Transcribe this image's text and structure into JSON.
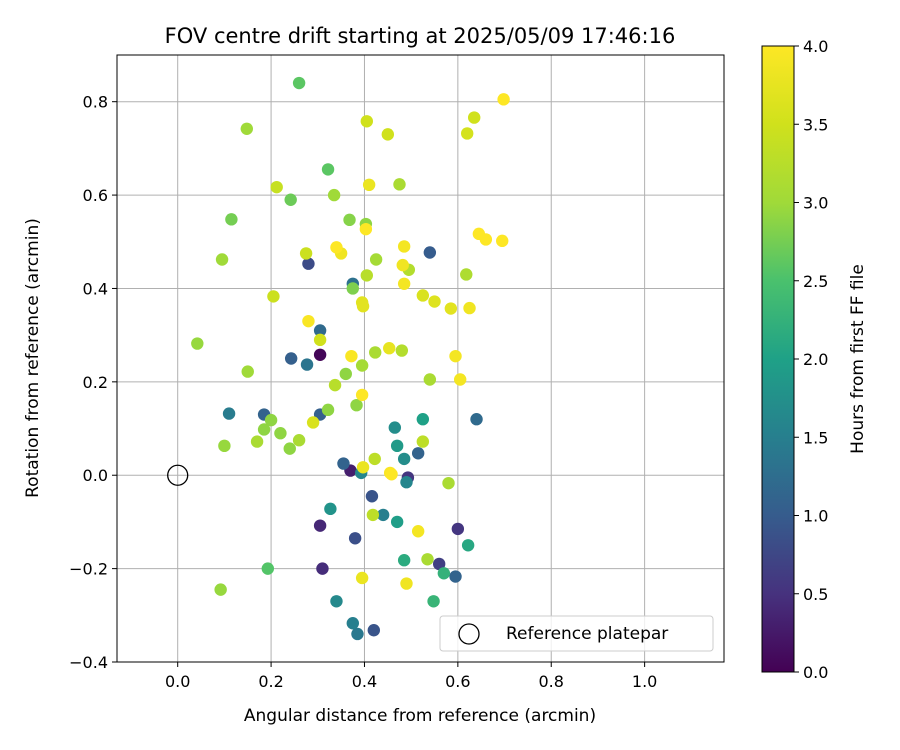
{
  "chart_data": {
    "type": "scatter",
    "title": "FOV centre drift starting at 2025/05/09 17:46:16",
    "xlabel": "Angular distance from reference (arcmin)",
    "ylabel": "Rotation from reference (arcmin)",
    "xlim": [
      -0.13,
      1.17
    ],
    "ylim": [
      -0.4,
      0.9
    ],
    "xticks": [
      0.0,
      0.2,
      0.4,
      0.6,
      0.8,
      1.0
    ],
    "xtick_labels": [
      "0.0",
      "0.2",
      "0.4",
      "0.6",
      "0.8",
      "1.0"
    ],
    "yticks": [
      -0.4,
      -0.2,
      0.0,
      0.2,
      0.4,
      0.6,
      0.8
    ],
    "ytick_labels": [
      "−0.4",
      "−0.2",
      "0.0",
      "0.2",
      "0.4",
      "0.6",
      "0.8"
    ],
    "grid": true,
    "colormap": "viridis",
    "colorbar": {
      "label": "Hours from first FF file",
      "range": [
        0.0,
        4.0
      ],
      "ticks": [
        0.0,
        0.5,
        1.0,
        1.5,
        2.0,
        2.5,
        3.0,
        3.5,
        4.0
      ],
      "tick_labels": [
        "0.0",
        "0.5",
        "1.0",
        "1.5",
        "2.0",
        "2.5",
        "3.0",
        "3.5",
        "4.0"
      ]
    },
    "reference": {
      "x": 0.0,
      "y": 0.0,
      "label": "Reference platepar"
    },
    "legend_position": "lower-right",
    "points": [
      {
        "x": 0.305,
        "y": 0.258,
        "t": 0.05
      },
      {
        "x": 0.37,
        "y": 0.01,
        "t": 0.3
      },
      {
        "x": 0.305,
        "y": -0.108,
        "t": 0.4
      },
      {
        "x": 0.31,
        "y": -0.2,
        "t": 0.45
      },
      {
        "x": 0.493,
        "y": -0.005,
        "t": 0.55
      },
      {
        "x": 0.6,
        "y": -0.115,
        "t": 0.55
      },
      {
        "x": 0.56,
        "y": -0.19,
        "t": 0.65
      },
      {
        "x": 0.28,
        "y": 0.453,
        "t": 0.8
      },
      {
        "x": 0.38,
        "y": -0.135,
        "t": 0.85
      },
      {
        "x": 0.416,
        "y": -0.045,
        "t": 0.9
      },
      {
        "x": 0.42,
        "y": -0.332,
        "t": 0.9
      },
      {
        "x": 0.54,
        "y": 0.477,
        "t": 1.0
      },
      {
        "x": 0.243,
        "y": 0.25,
        "t": 1.05
      },
      {
        "x": 0.305,
        "y": 0.13,
        "t": 1.05
      },
      {
        "x": 0.185,
        "y": 0.13,
        "t": 1.1
      },
      {
        "x": 0.355,
        "y": 0.025,
        "t": 1.1
      },
      {
        "x": 0.515,
        "y": 0.047,
        "t": 1.1
      },
      {
        "x": 0.595,
        "y": -0.217,
        "t": 1.1
      },
      {
        "x": 0.305,
        "y": 0.31,
        "t": 1.2
      },
      {
        "x": 0.64,
        "y": 0.12,
        "t": 1.2
      },
      {
        "x": 0.375,
        "y": 0.41,
        "t": 1.3
      },
      {
        "x": 0.277,
        "y": 0.237,
        "t": 1.35
      },
      {
        "x": 0.385,
        "y": -0.34,
        "t": 1.4
      },
      {
        "x": 0.11,
        "y": 0.132,
        "t": 1.45
      },
      {
        "x": 0.44,
        "y": -0.085,
        "t": 1.5
      },
      {
        "x": 0.375,
        "y": -0.317,
        "t": 1.5
      },
      {
        "x": 0.49,
        "y": -0.015,
        "t": 1.6
      },
      {
        "x": 0.393,
        "y": 0.005,
        "t": 1.6
      },
      {
        "x": 0.34,
        "y": -0.27,
        "t": 1.65
      },
      {
        "x": 0.465,
        "y": 0.102,
        "t": 1.7
      },
      {
        "x": 0.485,
        "y": 0.035,
        "t": 1.7
      },
      {
        "x": 0.327,
        "y": -0.072,
        "t": 1.8
      },
      {
        "x": 0.47,
        "y": 0.063,
        "t": 1.9
      },
      {
        "x": 0.47,
        "y": -0.1,
        "t": 1.95
      },
      {
        "x": 0.525,
        "y": 0.12,
        "t": 2.0
      },
      {
        "x": 0.622,
        "y": -0.15,
        "t": 2.1
      },
      {
        "x": 0.485,
        "y": -0.182,
        "t": 2.15
      },
      {
        "x": 0.57,
        "y": -0.21,
        "t": 2.25
      },
      {
        "x": 0.548,
        "y": -0.27,
        "t": 2.3
      },
      {
        "x": 0.193,
        "y": -0.2,
        "t": 2.55
      },
      {
        "x": 0.322,
        "y": 0.655,
        "t": 2.6
      },
      {
        "x": 0.26,
        "y": 0.84,
        "t": 2.6
      },
      {
        "x": 0.242,
        "y": 0.59,
        "t": 2.7
      },
      {
        "x": 0.115,
        "y": 0.548,
        "t": 2.75
      },
      {
        "x": 0.375,
        "y": 0.4,
        "t": 2.8
      },
      {
        "x": 0.368,
        "y": 0.547,
        "t": 2.85
      },
      {
        "x": 0.403,
        "y": 0.538,
        "t": 2.9
      },
      {
        "x": 0.322,
        "y": 0.14,
        "t": 2.9
      },
      {
        "x": 0.36,
        "y": 0.217,
        "t": 2.9
      },
      {
        "x": 0.383,
        "y": 0.15,
        "t": 2.9
      },
      {
        "x": 0.24,
        "y": 0.057,
        "t": 2.9
      },
      {
        "x": 0.22,
        "y": 0.09,
        "t": 2.9
      },
      {
        "x": 0.185,
        "y": 0.098,
        "t": 2.9
      },
      {
        "x": 0.2,
        "y": 0.118,
        "t": 2.9
      },
      {
        "x": 0.1,
        "y": 0.063,
        "t": 2.95
      },
      {
        "x": 0.042,
        "y": 0.282,
        "t": 2.95
      },
      {
        "x": 0.092,
        "y": -0.245,
        "t": 2.95
      },
      {
        "x": 0.148,
        "y": 0.742,
        "t": 3.0
      },
      {
        "x": 0.095,
        "y": 0.462,
        "t": 3.0
      },
      {
        "x": 0.15,
        "y": 0.222,
        "t": 3.0
      },
      {
        "x": 0.335,
        "y": 0.6,
        "t": 3.0
      },
      {
        "x": 0.425,
        "y": 0.462,
        "t": 3.05
      },
      {
        "x": 0.395,
        "y": 0.235,
        "t": 3.05
      },
      {
        "x": 0.423,
        "y": 0.263,
        "t": 3.1
      },
      {
        "x": 0.475,
        "y": 0.623,
        "t": 3.1
      },
      {
        "x": 0.54,
        "y": 0.205,
        "t": 3.1
      },
      {
        "x": 0.26,
        "y": 0.075,
        "t": 3.1
      },
      {
        "x": 0.17,
        "y": 0.072,
        "t": 3.1
      },
      {
        "x": 0.58,
        "y": -0.017,
        "t": 3.1
      },
      {
        "x": 0.535,
        "y": -0.18,
        "t": 3.1
      },
      {
        "x": 0.618,
        "y": 0.43,
        "t": 3.15
      },
      {
        "x": 0.495,
        "y": 0.44,
        "t": 3.2
      },
      {
        "x": 0.48,
        "y": 0.267,
        "t": 3.2
      },
      {
        "x": 0.405,
        "y": 0.428,
        "t": 3.25
      },
      {
        "x": 0.337,
        "y": 0.193,
        "t": 3.25
      },
      {
        "x": 0.422,
        "y": 0.035,
        "t": 3.3
      },
      {
        "x": 0.418,
        "y": -0.085,
        "t": 3.3
      },
      {
        "x": 0.525,
        "y": 0.072,
        "t": 3.3
      },
      {
        "x": 0.212,
        "y": 0.617,
        "t": 3.4
      },
      {
        "x": 0.275,
        "y": 0.475,
        "t": 3.45
      },
      {
        "x": 0.205,
        "y": 0.383,
        "t": 3.45
      },
      {
        "x": 0.305,
        "y": 0.29,
        "t": 3.5
      },
      {
        "x": 0.45,
        "y": 0.73,
        "t": 3.5
      },
      {
        "x": 0.405,
        "y": 0.758,
        "t": 3.5
      },
      {
        "x": 0.635,
        "y": 0.766,
        "t": 3.5
      },
      {
        "x": 0.62,
        "y": 0.732,
        "t": 3.55
      },
      {
        "x": 0.29,
        "y": 0.113,
        "t": 3.6
      },
      {
        "x": 0.525,
        "y": 0.385,
        "t": 3.6
      },
      {
        "x": 0.55,
        "y": 0.372,
        "t": 3.65
      },
      {
        "x": 0.585,
        "y": 0.357,
        "t": 3.7
      },
      {
        "x": 0.395,
        "y": 0.37,
        "t": 3.7
      },
      {
        "x": 0.397,
        "y": 0.362,
        "t": 3.7
      },
      {
        "x": 0.453,
        "y": 0.272,
        "t": 3.75
      },
      {
        "x": 0.41,
        "y": 0.622,
        "t": 3.8
      },
      {
        "x": 0.397,
        "y": 0.017,
        "t": 3.8
      },
      {
        "x": 0.395,
        "y": -0.22,
        "t": 3.8
      },
      {
        "x": 0.49,
        "y": -0.232,
        "t": 3.85
      },
      {
        "x": 0.482,
        "y": 0.45,
        "t": 3.85
      },
      {
        "x": 0.625,
        "y": 0.358,
        "t": 3.85
      },
      {
        "x": 0.35,
        "y": 0.475,
        "t": 3.85
      },
      {
        "x": 0.485,
        "y": 0.49,
        "t": 3.9
      },
      {
        "x": 0.485,
        "y": 0.41,
        "t": 3.9
      },
      {
        "x": 0.515,
        "y": -0.12,
        "t": 3.9
      },
      {
        "x": 0.595,
        "y": 0.255,
        "t": 3.9
      },
      {
        "x": 0.605,
        "y": 0.205,
        "t": 3.9
      },
      {
        "x": 0.28,
        "y": 0.33,
        "t": 3.95
      },
      {
        "x": 0.372,
        "y": 0.255,
        "t": 3.95
      },
      {
        "x": 0.455,
        "y": 0.005,
        "t": 3.95
      },
      {
        "x": 0.34,
        "y": 0.488,
        "t": 4.0
      },
      {
        "x": 0.403,
        "y": 0.527,
        "t": 4.0
      },
      {
        "x": 0.645,
        "y": 0.517,
        "t": 4.0
      },
      {
        "x": 0.66,
        "y": 0.505,
        "t": 4.0
      },
      {
        "x": 0.695,
        "y": 0.502,
        "t": 4.0
      },
      {
        "x": 0.698,
        "y": 0.805,
        "t": 4.0
      },
      {
        "x": 0.395,
        "y": 0.172,
        "t": 4.0
      },
      {
        "x": 0.458,
        "y": 0.002,
        "t": 4.0
      }
    ]
  }
}
